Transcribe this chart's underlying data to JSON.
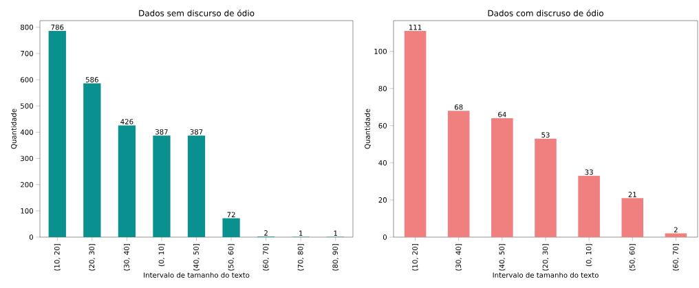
{
  "chart_data": [
    {
      "type": "bar",
      "title": "Dados sem discurso de ódio",
      "xlabel": "Intervalo de tamanho do texto",
      "ylabel": "Quantidade",
      "categories": [
        "(10, 20]",
        "(20, 30]",
        "(30, 40]",
        "(0, 10]",
        "(40, 50]",
        "(50, 60]",
        "(60, 70]",
        "(70, 80]",
        "(80, 90]"
      ],
      "values": [
        786,
        586,
        426,
        387,
        387,
        72,
        2,
        1,
        1
      ],
      "color": "#0a918f",
      "ylim": [
        0,
        825.3
      ],
      "yticks": [
        0,
        100,
        200,
        300,
        400,
        500,
        600,
        700,
        800
      ],
      "data_labels": true
    },
    {
      "type": "bar",
      "title": "Dados com discruso de ódio",
      "xlabel": "Intervalo de tamanho do texto",
      "ylabel": "Quantidade",
      "categories": [
        "(10, 20]",
        "(30, 40]",
        "(40, 50]",
        "(20, 30]",
        "(0, 10]",
        "(50, 60]",
        "(60, 70]"
      ],
      "values": [
        111,
        68,
        64,
        53,
        33,
        21,
        2
      ],
      "color": "#f08080",
      "ylim": [
        0,
        116.55
      ],
      "yticks": [
        0,
        20,
        40,
        60,
        80,
        100
      ],
      "data_labels": true
    }
  ]
}
